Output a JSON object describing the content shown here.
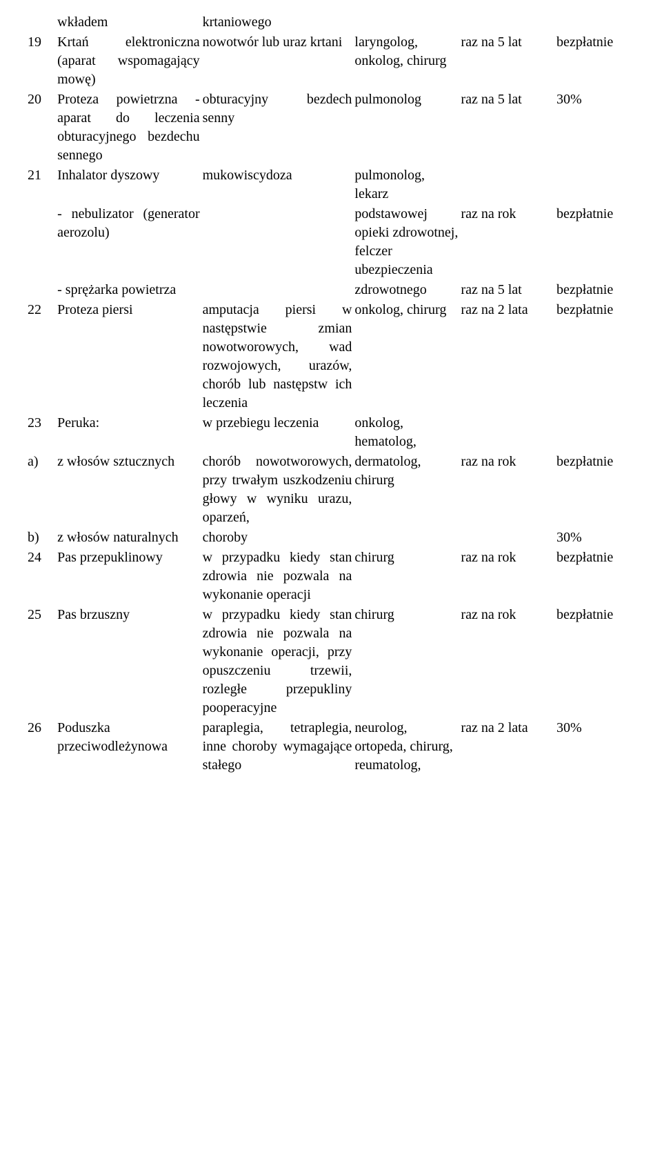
{
  "rows": [
    {
      "num": "",
      "name": "wkładem",
      "ind": "krtaniowego",
      "spec": "",
      "freq": "",
      "pay": ""
    },
    {
      "num": "19",
      "name": "Krtań elektroniczna (aparat wspomagający mowę)",
      "ind": "nowotwór lub uraz krtani",
      "spec": "laryngolog, onkolog, chirurg",
      "freq": "raz na 5 lat",
      "pay": "bezpłatnie"
    },
    {
      "num": "20",
      "name": "Proteza powietrzna -aparat do leczenia obturacyjnego bezdechu sennego",
      "ind": "obturacyjny bezdech senny",
      "spec": "pulmonolog",
      "freq": "raz na 5 lat",
      "pay": "30%"
    },
    {
      "num": "21",
      "name": "Inhalator dyszowy",
      "ind": "mukowiscydoza",
      "spec": "pulmonolog, lekarz",
      "freq": "",
      "pay": ""
    },
    {
      "num": "",
      "name": "- nebulizator (generator aerozolu)",
      "ind": "",
      "spec": "podstawowej opieki zdrowotnej, felczer ubezpieczenia",
      "freq": "raz na rok",
      "pay": "bezpłatnie"
    },
    {
      "num": "",
      "name": "- sprężarka powietrza",
      "ind": "",
      "spec": "zdrowotnego",
      "freq": "raz na 5 lat",
      "pay": "bezpłatnie"
    },
    {
      "num": "22",
      "name": "Proteza piersi",
      "ind": "amputacja piersi w następstwie zmian nowotworowych, wad rozwojowych, urazów, chorób lub następstw ich leczenia",
      "spec": "onkolog, chirurg",
      "freq": "raz na 2 lata",
      "pay": "bezpłatnie"
    },
    {
      "num": "23",
      "name": "Peruka:",
      "ind": "w przebiegu leczenia",
      "spec": "onkolog, hematolog,",
      "freq": "",
      "pay": ""
    },
    {
      "num": "a)",
      "name": "z włosów sztucznych",
      "ind": "chorób nowotworowych, przy trwałym uszkodzeniu głowy w wyniku urazu, oparzeń,",
      "spec": "dermatolog, chirurg",
      "freq": "raz na rok",
      "pay": "bezpłatnie"
    },
    {
      "num": "b)",
      "name": "z włosów naturalnych",
      "ind": "choroby",
      "spec": "",
      "freq": "",
      "pay": "30%"
    },
    {
      "num": "24",
      "name": "Pas przepuklinowy",
      "ind": "w przypadku kiedy stan zdrowia nie pozwala na wykonanie operacji",
      "spec": "chirurg",
      "freq": "raz na rok",
      "pay": "bezpłatnie"
    },
    {
      "num": "25",
      "name": "Pas brzuszny",
      "ind": "w przypadku kiedy stan zdrowia nie pozwala na wykonanie operacji, przy opuszczeniu trzewii, rozległe przepukliny pooperacyjne",
      "spec": "chirurg",
      "freq": "raz na rok",
      "pay": "bezpłatnie"
    },
    {
      "num": "26",
      "name": "Poduszka przeciwodleżynowa",
      "ind": "paraplegia, tetraplegia, inne choroby wymagające stałego",
      "spec": "neurolog, ortopeda, chirurg, reumatolog,",
      "freq": "raz na 2 lata",
      "pay": "30%"
    }
  ]
}
